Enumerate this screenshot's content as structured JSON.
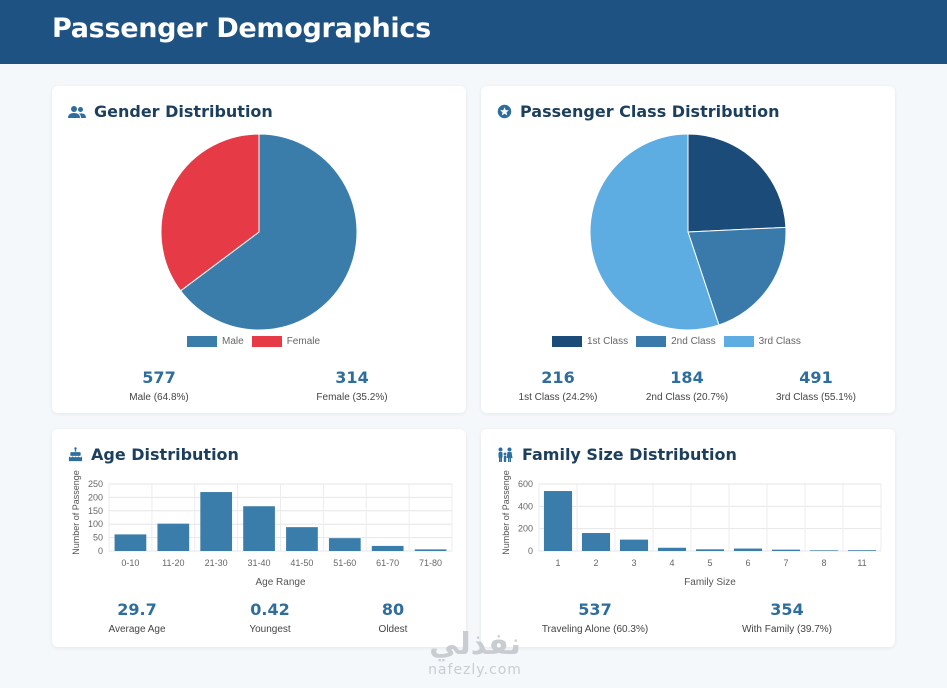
{
  "header": {
    "title": "Passenger Demographics"
  },
  "colors": {
    "header": "#1d5283",
    "male": "#3b7daa",
    "female": "#e63a46",
    "first": "#1b4b78",
    "second": "#3a7aaa",
    "third": "#5dade2",
    "bar": "#3b7daa"
  },
  "gender": {
    "title": "Gender Distribution",
    "icon": "users-icon",
    "legend": [
      "Male",
      "Female"
    ],
    "stats": [
      {
        "value": "577",
        "label": "Male (64.8%)"
      },
      {
        "value": "314",
        "label": "Female (35.2%)"
      }
    ]
  },
  "pclass": {
    "title": "Passenger Class Distribution",
    "icon": "star-badge-icon",
    "legend": [
      "1st Class",
      "2nd Class",
      "3rd Class"
    ],
    "stats": [
      {
        "value": "216",
        "label": "1st Class (24.2%)"
      },
      {
        "value": "184",
        "label": "2nd Class (20.7%)"
      },
      {
        "value": "491",
        "label": "3rd Class (55.1%)"
      }
    ]
  },
  "age": {
    "title": "Age Distribution",
    "icon": "birthday-cake-icon",
    "stats": [
      {
        "value": "29.7",
        "label": "Average Age"
      },
      {
        "value": "0.42",
        "label": "Youngest"
      },
      {
        "value": "80",
        "label": "Oldest"
      }
    ]
  },
  "family": {
    "title": "Family Size Distribution",
    "icon": "family-icon",
    "stats": [
      {
        "value": "537",
        "label": "Traveling Alone (60.3%)"
      },
      {
        "value": "354",
        "label": "With Family (39.7%)"
      }
    ]
  },
  "watermark": {
    "arabic": "نفذلي",
    "latin": "nafezly.com"
  },
  "chart_data": [
    {
      "type": "pie",
      "labels": [
        "Male",
        "Female"
      ],
      "values": [
        577,
        314
      ],
      "legend": "bottom"
    },
    {
      "type": "pie",
      "labels": [
        "1st Class",
        "2nd Class",
        "3rd Class"
      ],
      "values": [
        216,
        184,
        491
      ],
      "legend": "bottom"
    },
    {
      "type": "bar",
      "categories": [
        "0-10",
        "11-20",
        "21-30",
        "31-40",
        "41-50",
        "51-60",
        "61-70",
        "71-80"
      ],
      "values": [
        62,
        102,
        220,
        167,
        89,
        48,
        19,
        6
      ],
      "xlabel": "Age Range",
      "ylabel": "Number of Passenge",
      "ylim": [
        0,
        250
      ],
      "yticks": [
        0,
        50,
        100,
        150,
        200,
        250
      ],
      "grid": true
    },
    {
      "type": "bar",
      "categories": [
        "1",
        "2",
        "3",
        "4",
        "5",
        "6",
        "7",
        "8",
        "11"
      ],
      "values": [
        537,
        161,
        102,
        29,
        15,
        22,
        12,
        6,
        7
      ],
      "xlabel": "Family Size",
      "ylabel": "Number of Passenge",
      "ylim": [
        0,
        600
      ],
      "yticks": [
        0,
        200,
        400,
        600
      ],
      "grid": true
    }
  ]
}
